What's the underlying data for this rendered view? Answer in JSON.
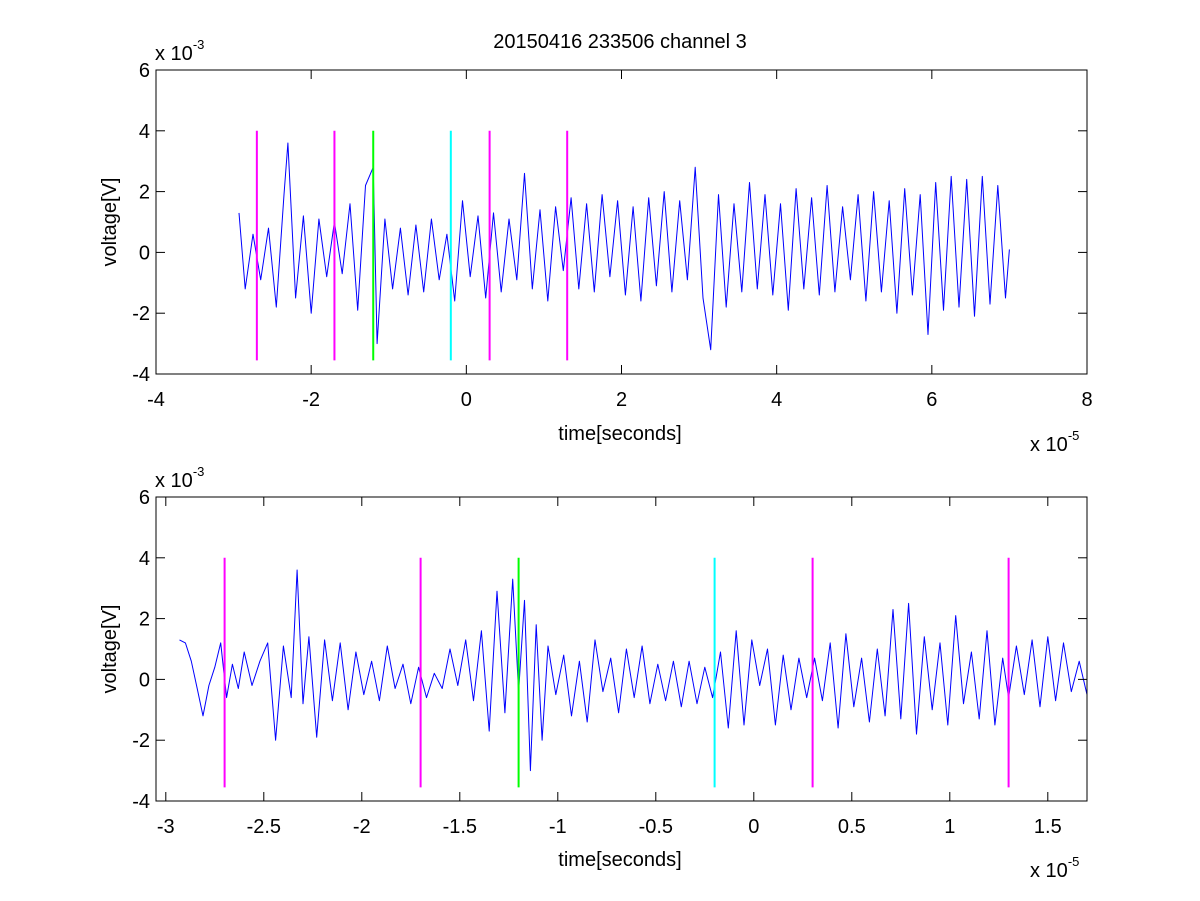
{
  "figure": {
    "title": "20150416 233506 channel 3",
    "background": "#ffffff"
  },
  "colors": {
    "signal": "#0000ff",
    "event_magenta": "#ff00ff",
    "event_green": "#00ff00",
    "event_cyan": "#00ffff",
    "axes": "#000000"
  },
  "chart_data": [
    {
      "type": "line",
      "panel": "top",
      "title": "20150416 233506 channel 3",
      "xlabel": "time[seconds]",
      "ylabel": "voltage[V]",
      "x_multiplier": "x 10",
      "x_multiplier_exp": "-5",
      "y_multiplier": "x 10",
      "y_multiplier_exp": "-3",
      "xlim": [
        -4,
        8
      ],
      "ylim": [
        -4,
        6
      ],
      "x_ticks": [
        -4,
        -2,
        0,
        2,
        4,
        6,
        8
      ],
      "x_tick_labels": [
        "-4",
        "-2",
        "0",
        "2",
        "4",
        "6",
        "8"
      ],
      "y_ticks": [
        -4,
        -2,
        0,
        2,
        4,
        6
      ],
      "y_tick_labels": [
        "-4",
        "-2",
        "0",
        "2",
        "4",
        "6"
      ],
      "grid": false,
      "series": [
        {
          "color": "#0000ff",
          "x": [
            -2.93,
            -2.85,
            -2.75,
            -2.65,
            -2.55,
            -2.45,
            -2.35,
            -2.3,
            -2.2,
            -2.1,
            -2.0,
            -1.9,
            -1.8,
            -1.7,
            -1.6,
            -1.5,
            -1.4,
            -1.3,
            -1.2,
            -1.15,
            -1.05,
            -0.95,
            -0.85,
            -0.75,
            -0.65,
            -0.55,
            -0.45,
            -0.35,
            -0.25,
            -0.15,
            -0.05,
            0.05,
            0.15,
            0.25,
            0.35,
            0.45,
            0.55,
            0.65,
            0.75,
            0.85,
            0.95,
            1.05,
            1.15,
            1.25,
            1.35,
            1.45,
            1.55,
            1.65,
            1.75,
            1.85,
            1.95,
            2.05,
            2.15,
            2.25,
            2.35,
            2.45,
            2.55,
            2.65,
            2.75,
            2.85,
            2.95,
            3.05,
            3.15,
            3.25,
            3.35,
            3.45,
            3.55,
            3.65,
            3.75,
            3.85,
            3.95,
            4.05,
            4.15,
            4.25,
            4.35,
            4.45,
            4.55,
            4.65,
            4.75,
            4.85,
            4.95,
            5.05,
            5.15,
            5.25,
            5.35,
            5.45,
            5.55,
            5.65,
            5.75,
            5.85,
            5.95,
            6.05,
            6.15,
            6.25,
            6.35,
            6.45,
            6.55,
            6.65,
            6.75,
            6.85,
            6.95,
            7.0
          ],
          "y": [
            1.3,
            -1.2,
            0.6,
            -0.9,
            0.8,
            -1.8,
            1.9,
            3.6,
            -1.5,
            1.2,
            -2.0,
            1.1,
            -0.8,
            1.0,
            -0.7,
            1.6,
            -1.9,
            2.2,
            2.8,
            -3.0,
            1.1,
            -1.2,
            0.8,
            -1.4,
            0.9,
            -1.3,
            1.1,
            -0.9,
            0.6,
            -1.6,
            1.7,
            -0.8,
            1.2,
            -1.5,
            1.3,
            -1.3,
            1.1,
            -0.9,
            2.6,
            -1.2,
            1.4,
            -1.6,
            1.5,
            -0.6,
            1.8,
            -1.2,
            1.6,
            -1.3,
            1.9,
            -0.8,
            1.7,
            -1.4,
            1.5,
            -1.6,
            1.8,
            -1.1,
            2.0,
            -1.3,
            1.7,
            -0.9,
            2.8,
            -1.5,
            -3.2,
            1.9,
            -1.8,
            1.6,
            -1.3,
            2.3,
            -1.2,
            1.9,
            -1.4,
            1.6,
            -1.9,
            2.1,
            -1.2,
            1.8,
            -1.4,
            2.2,
            -1.3,
            1.5,
            -0.9,
            1.9,
            -1.6,
            2.0,
            -1.3,
            1.7,
            -2.0,
            2.1,
            -1.4,
            1.9,
            -2.7,
            2.3,
            -1.9,
            2.5,
            -1.8,
            2.4,
            -2.1,
            2.5,
            -1.7,
            2.2,
            -1.5,
            0.1
          ]
        }
      ],
      "event_lines": [
        {
          "x": -2.7,
          "y_range": [
            -3.55,
            4.0
          ],
          "color": "#ff00ff"
        },
        {
          "x": -1.7,
          "y_range": [
            -3.55,
            4.0
          ],
          "color": "#ff00ff"
        },
        {
          "x": -1.2,
          "y_range": [
            -3.55,
            4.0
          ],
          "color": "#00ff00"
        },
        {
          "x": -0.2,
          "y_range": [
            -3.55,
            4.0
          ],
          "color": "#00ffff"
        },
        {
          "x": 0.3,
          "y_range": [
            -3.55,
            4.0
          ],
          "color": "#ff00ff"
        },
        {
          "x": 1.3,
          "y_range": [
            -3.55,
            4.0
          ],
          "color": "#ff00ff"
        }
      ]
    },
    {
      "type": "line",
      "panel": "bottom",
      "title": "",
      "xlabel": "time[seconds]",
      "ylabel": "voltage[V]",
      "x_multiplier": "x 10",
      "x_multiplier_exp": "-5",
      "y_multiplier": "x 10",
      "y_multiplier_exp": "-3",
      "xlim": [
        -3.05,
        1.7
      ],
      "ylim": [
        -4,
        6
      ],
      "x_ticks": [
        -3,
        -2.5,
        -2,
        -1.5,
        -1,
        -0.5,
        0,
        0.5,
        1,
        1.5
      ],
      "x_tick_labels": [
        "-3",
        "-2.5",
        "-2",
        "-1.5",
        "-1",
        "-0.5",
        "0",
        "0.5",
        "1",
        "1.5"
      ],
      "y_ticks": [
        -4,
        -2,
        0,
        2,
        4,
        6
      ],
      "y_tick_labels": [
        "-4",
        "-2",
        "0",
        "2",
        "4",
        "6"
      ],
      "grid": false,
      "series": [
        {
          "color": "#0000ff",
          "x": [
            -2.93,
            -2.9,
            -2.87,
            -2.84,
            -2.81,
            -2.78,
            -2.75,
            -2.72,
            -2.69,
            -2.66,
            -2.63,
            -2.6,
            -2.56,
            -2.52,
            -2.48,
            -2.44,
            -2.4,
            -2.36,
            -2.33,
            -2.3,
            -2.27,
            -2.23,
            -2.19,
            -2.15,
            -2.11,
            -2.07,
            -2.03,
            -1.99,
            -1.95,
            -1.91,
            -1.87,
            -1.83,
            -1.79,
            -1.75,
            -1.71,
            -1.67,
            -1.63,
            -1.59,
            -1.55,
            -1.51,
            -1.47,
            -1.43,
            -1.39,
            -1.35,
            -1.31,
            -1.27,
            -1.23,
            -1.2,
            -1.17,
            -1.14,
            -1.11,
            -1.08,
            -1.05,
            -1.01,
            -0.97,
            -0.93,
            -0.89,
            -0.85,
            -0.81,
            -0.77,
            -0.73,
            -0.69,
            -0.65,
            -0.61,
            -0.57,
            -0.53,
            -0.49,
            -0.45,
            -0.41,
            -0.37,
            -0.33,
            -0.29,
            -0.25,
            -0.21,
            -0.17,
            -0.13,
            -0.09,
            -0.05,
            -0.01,
            0.03,
            0.07,
            0.11,
            0.15,
            0.19,
            0.23,
            0.27,
            0.31,
            0.35,
            0.39,
            0.43,
            0.47,
            0.51,
            0.55,
            0.59,
            0.63,
            0.67,
            0.71,
            0.75,
            0.79,
            0.83,
            0.87,
            0.91,
            0.95,
            0.99,
            1.03,
            1.07,
            1.11,
            1.15,
            1.19,
            1.23,
            1.27,
            1.3,
            1.34,
            1.38,
            1.42,
            1.46,
            1.5,
            1.54,
            1.58,
            1.62,
            1.66,
            1.7
          ],
          "y": [
            1.3,
            1.2,
            0.6,
            -0.3,
            -1.2,
            -0.2,
            0.4,
            1.2,
            -0.6,
            0.5,
            -0.3,
            0.9,
            -0.2,
            0.6,
            1.2,
            -2.0,
            1.1,
            -0.6,
            3.6,
            -0.8,
            1.4,
            -1.9,
            1.3,
            -0.7,
            1.2,
            -1.0,
            0.9,
            -0.5,
            0.6,
            -0.7,
            1.1,
            -0.3,
            0.5,
            -0.8,
            0.4,
            -0.6,
            0.2,
            -0.3,
            1.0,
            -0.2,
            1.3,
            -0.7,
            1.6,
            -1.7,
            2.9,
            -1.1,
            3.3,
            -0.4,
            2.6,
            -3.0,
            1.8,
            -2.0,
            1.1,
            -0.5,
            0.8,
            -1.2,
            0.6,
            -1.4,
            1.3,
            -0.4,
            0.7,
            -1.1,
            1.0,
            -0.6,
            1.1,
            -0.8,
            0.5,
            -0.7,
            0.6,
            -0.9,
            0.6,
            -0.8,
            0.4,
            -0.6,
            0.9,
            -1.6,
            1.6,
            -1.5,
            1.3,
            -0.2,
            1.0,
            -1.5,
            0.8,
            -1.0,
            0.7,
            -0.6,
            0.7,
            -0.7,
            1.2,
            -1.6,
            1.5,
            -0.9,
            0.7,
            -1.4,
            1.0,
            -1.2,
            2.3,
            -1.3,
            2.5,
            -1.8,
            1.4,
            -1.0,
            1.2,
            -1.5,
            2.1,
            -0.8,
            0.9,
            -1.3,
            1.6,
            -1.5,
            0.7,
            -0.6,
            1.1,
            -0.5,
            1.3,
            -0.9,
            1.4,
            -0.7,
            1.2,
            -0.4,
            0.6,
            -0.5
          ]
        }
      ],
      "event_lines": [
        {
          "x": -2.7,
          "y_range": [
            -3.55,
            4.0
          ],
          "color": "#ff00ff"
        },
        {
          "x": -1.7,
          "y_range": [
            -3.55,
            4.0
          ],
          "color": "#ff00ff"
        },
        {
          "x": -1.2,
          "y_range": [
            -3.55,
            4.0
          ],
          "color": "#00ff00"
        },
        {
          "x": -0.2,
          "y_range": [
            -3.55,
            4.0
          ],
          "color": "#00ffff"
        },
        {
          "x": 0.3,
          "y_range": [
            -3.55,
            4.0
          ],
          "color": "#ff00ff"
        },
        {
          "x": 1.3,
          "y_range": [
            -3.55,
            4.0
          ],
          "color": "#ff00ff"
        }
      ]
    }
  ]
}
